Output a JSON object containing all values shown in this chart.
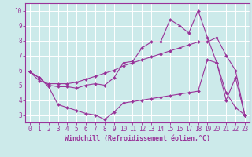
{
  "xlabel": "Windchill (Refroidissement éolien,°C)",
  "bg_color": "#cceaea",
  "grid_color": "#ffffff",
  "line_color": "#993399",
  "axis_label_color": "#993399",
  "xlim": [
    -0.5,
    23.5
  ],
  "ylim": [
    2.5,
    10.5
  ],
  "xticks": [
    0,
    1,
    2,
    3,
    4,
    5,
    6,
    7,
    8,
    9,
    10,
    11,
    12,
    13,
    14,
    15,
    16,
    17,
    18,
    19,
    20,
    21,
    22,
    23
  ],
  "yticks": [
    3,
    4,
    5,
    6,
    7,
    8,
    9,
    10
  ],
  "line1_x": [
    0,
    1,
    2,
    3,
    4,
    5,
    6,
    7,
    8,
    9,
    10,
    11,
    12,
    13,
    14,
    15,
    16,
    17,
    18,
    19,
    20,
    21,
    22,
    23
  ],
  "line1_y": [
    5.9,
    5.5,
    5.0,
    4.9,
    4.9,
    4.8,
    5.0,
    5.1,
    5.0,
    5.5,
    6.5,
    6.6,
    7.5,
    7.9,
    7.9,
    9.4,
    9.0,
    8.5,
    10.0,
    8.2,
    6.5,
    4.0,
    5.5,
    3.0
  ],
  "line2_x": [
    0,
    1,
    2,
    3,
    4,
    5,
    6,
    7,
    8,
    9,
    10,
    11,
    12,
    13,
    14,
    15,
    16,
    17,
    18,
    19,
    20,
    21,
    22,
    23
  ],
  "line2_y": [
    5.9,
    5.3,
    5.1,
    5.1,
    5.1,
    5.2,
    5.4,
    5.6,
    5.8,
    6.0,
    6.3,
    6.5,
    6.7,
    6.9,
    7.1,
    7.3,
    7.5,
    7.7,
    7.9,
    7.9,
    8.2,
    7.0,
    6.0,
    3.0
  ],
  "line3_x": [
    0,
    1,
    2,
    3,
    4,
    5,
    6,
    7,
    8,
    9,
    10,
    11,
    12,
    13,
    14,
    15,
    16,
    17,
    18,
    19,
    20,
    21,
    22,
    23
  ],
  "line3_y": [
    5.9,
    5.5,
    4.9,
    3.7,
    3.5,
    3.3,
    3.1,
    3.0,
    2.7,
    3.2,
    3.8,
    3.9,
    4.0,
    4.1,
    4.2,
    4.3,
    4.4,
    4.5,
    4.6,
    6.7,
    6.5,
    4.5,
    3.5,
    3.0
  ],
  "marker": "D",
  "marker_size": 2.0,
  "line_width": 0.8,
  "tick_fontsize": 5.5,
  "xlabel_fontsize": 6.0
}
